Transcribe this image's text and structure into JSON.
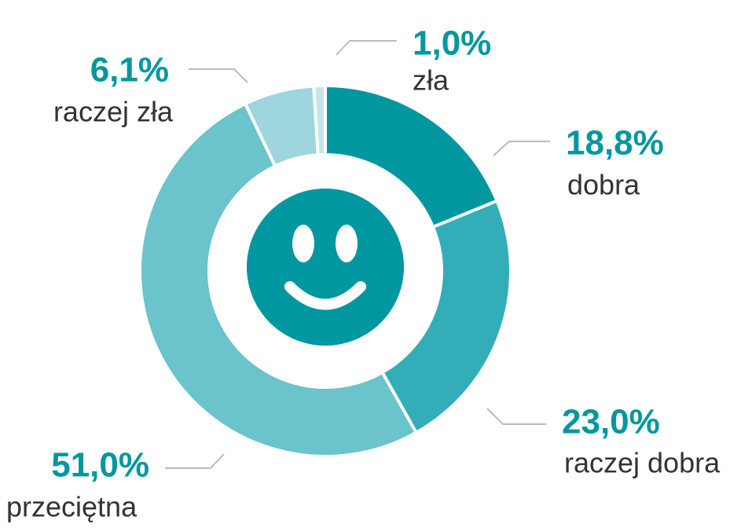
{
  "chart_data": {
    "type": "pie",
    "donut": true,
    "categories": [
      "dobra",
      "raczej dobra",
      "przeciętna",
      "raczej zła",
      "zła"
    ],
    "values": [
      18.8,
      23.0,
      51.0,
      6.1,
      1.0
    ],
    "value_labels": [
      "18,8%",
      "23,0%",
      "51,0%",
      "6,1%",
      "1,0%"
    ],
    "colors": [
      "#0097a0",
      "#33adb8",
      "#6bc3cb",
      "#9dd6dc",
      "#c5e6e9"
    ]
  }
}
